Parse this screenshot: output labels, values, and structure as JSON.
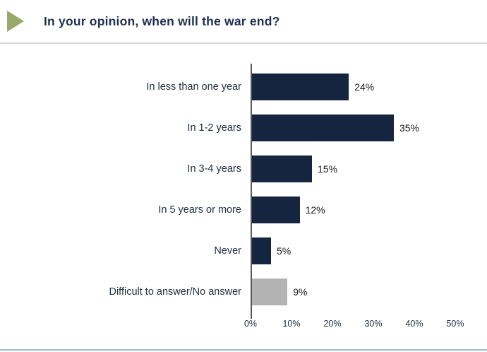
{
  "slide": {
    "title": "In your opinion, when will the war end?",
    "accent_triangle_color": "#9aa86b",
    "divider_color": "#d9d9d9",
    "bottom_line_color": "#9fb8cb",
    "title_color": "#1f3050"
  },
  "chart_data": {
    "type": "bar",
    "orientation": "horizontal",
    "title": "In your opinion, when will the war end?",
    "categories": [
      "In less than one year",
      "In 1-2 years",
      "In 3-4 years",
      "In 5 years or more",
      "Never",
      "Difficult to answer/No answer"
    ],
    "values": [
      24,
      35,
      15,
      12,
      5,
      9
    ],
    "value_labels": [
      "24%",
      "35%",
      "15%",
      "12%",
      "5%",
      "9%"
    ],
    "bar_colors": [
      "#16253f",
      "#16253f",
      "#16253f",
      "#16253f",
      "#16253f",
      "#b3b3b3"
    ],
    "xlabel": "",
    "ylabel": "",
    "xlim": [
      0,
      50
    ],
    "x_tick_values": [
      0,
      10,
      20,
      30,
      40,
      50
    ],
    "x_ticks": [
      "0%",
      "10%",
      "20%",
      "30%",
      "40%",
      "50%"
    ],
    "grid": false,
    "legend": "none"
  }
}
